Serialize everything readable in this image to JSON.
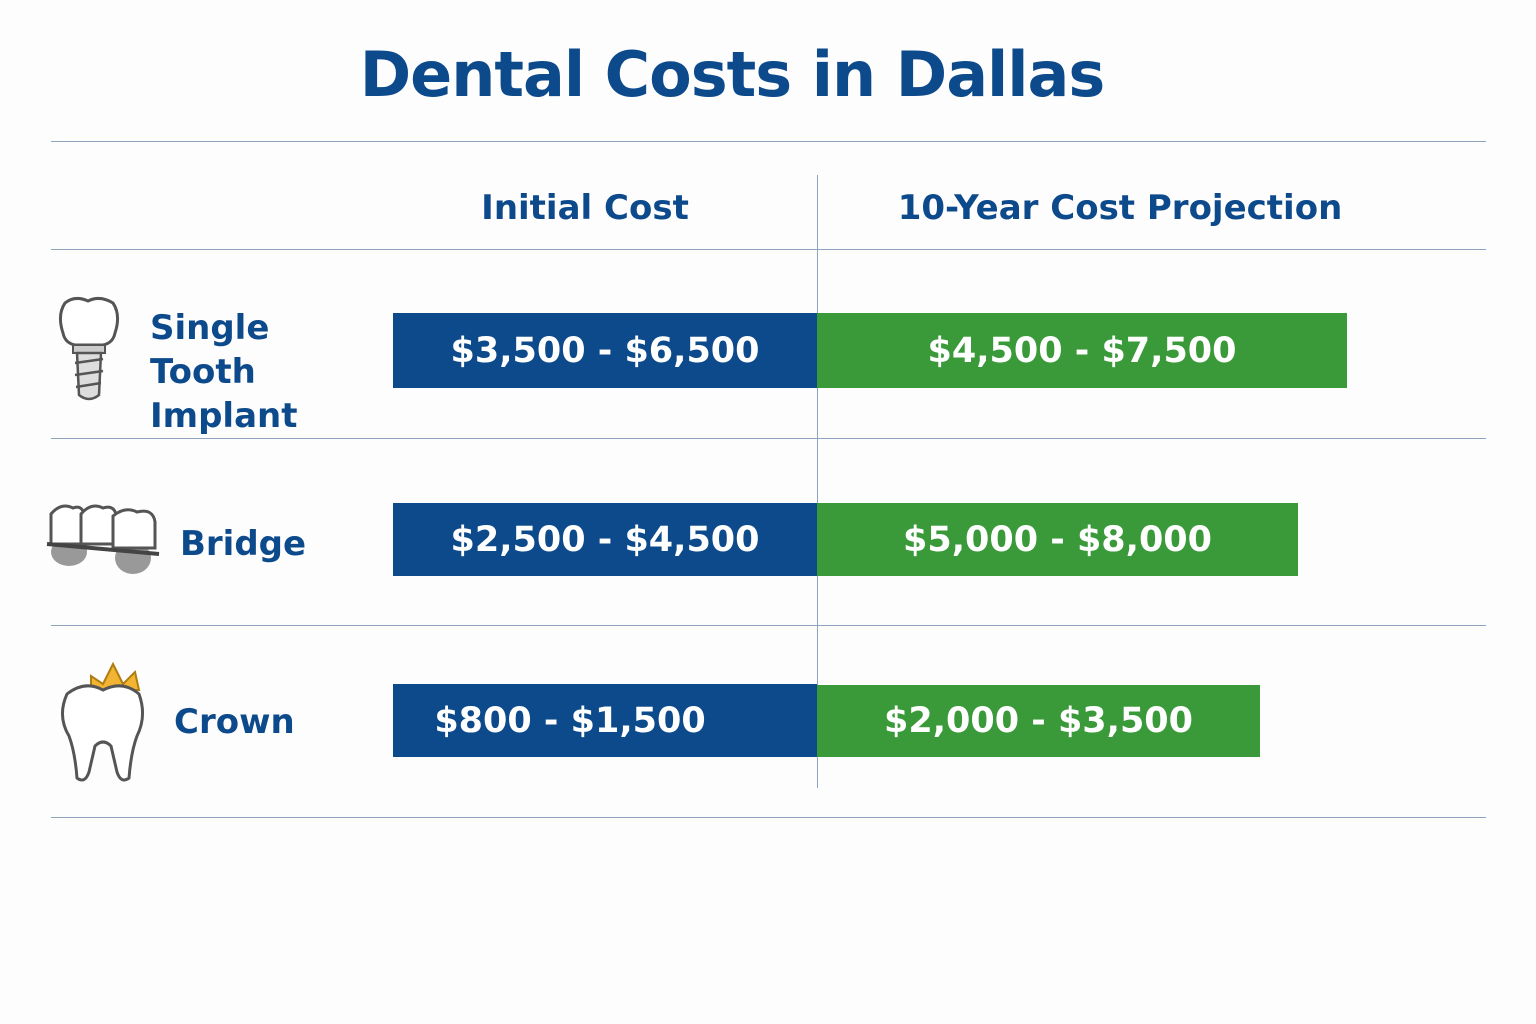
{
  "title": "Dental Costs in Dallas",
  "table": {
    "header": [
      "Initial Cost",
      "10-Year Cost Projection"
    ],
    "rows": [
      [
        "Single Tooth Implant",
        "$3,500 - $6,500",
        "$4,500 - $7,500"
      ],
      [
        "Bridge",
        "$2,500 - $4,500",
        "$5,000 - $8,000"
      ],
      [
        "Crown",
        "$800 - $1,500",
        "$2,000 - $3,500"
      ]
    ]
  }
}
